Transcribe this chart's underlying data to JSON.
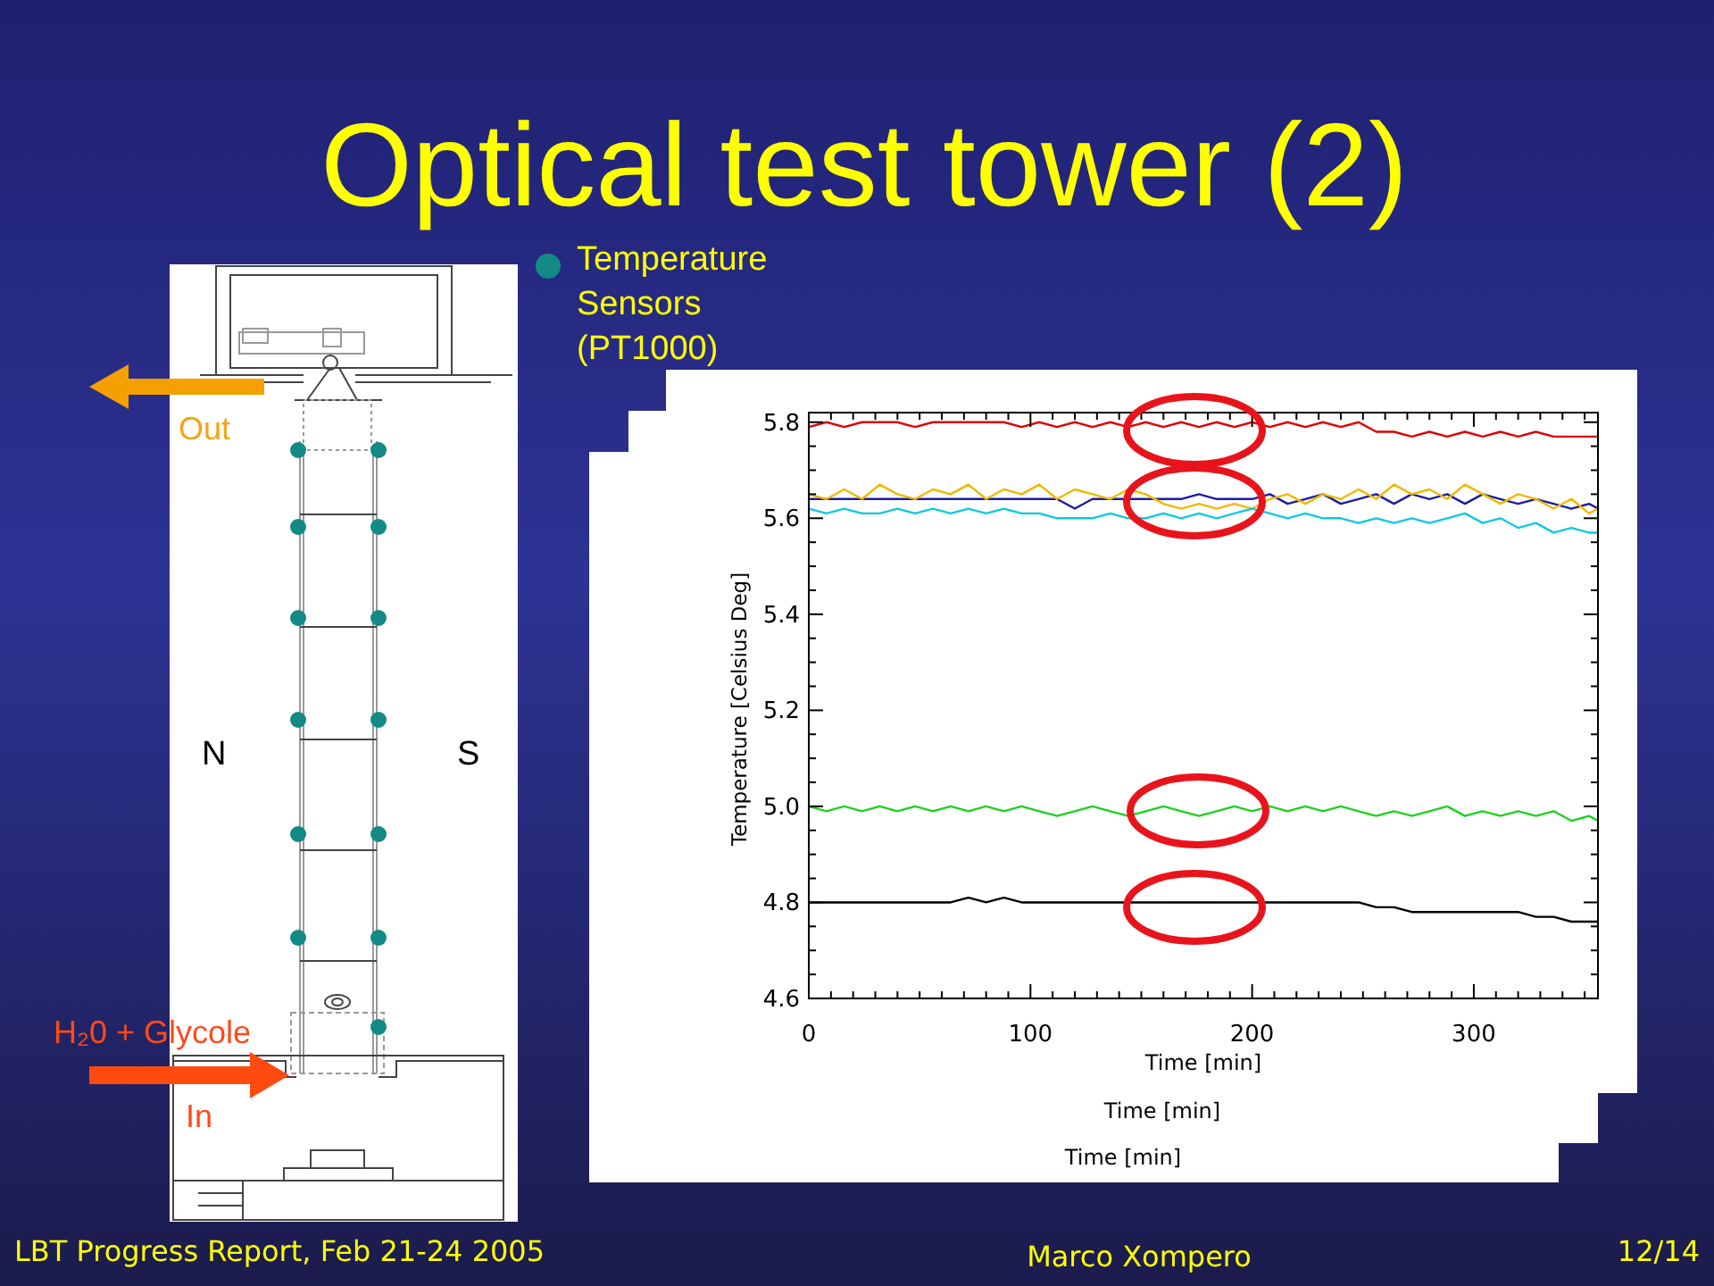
{
  "chart_data": {
    "type": "line",
    "title": "Optical test tower (2)",
    "xlabel": "Time [min]",
    "ylabel": "Temperature [Celsius Deg]",
    "x": [
      0,
      8,
      16,
      24,
      32,
      40,
      48,
      56,
      64,
      72,
      80,
      88,
      96,
      104,
      112,
      120,
      128,
      136,
      144,
      152,
      160,
      168,
      176,
      184,
      192,
      200,
      208,
      216,
      224,
      232,
      240,
      248,
      256,
      264,
      272,
      280,
      288,
      296,
      304,
      312,
      320,
      328,
      336,
      344,
      352,
      356
    ],
    "xlim": [
      0,
      356
    ],
    "ylim": [
      4.6,
      5.82
    ],
    "xticks": [
      0,
      {
        "value": 10,
        "label": null
      },
      {
        "value": 20,
        "label": null
      },
      {
        "value": 30,
        "label": null
      },
      {
        "value": 40,
        "label": null
      },
      {
        "value": 50,
        "label": null
      },
      {
        "value": 60,
        "label": null
      },
      {
        "value": 70,
        "label": null
      },
      {
        "value": 80,
        "label": null
      },
      {
        "value": 90,
        "label": null
      },
      100,
      {
        "value": 110,
        "label": null
      },
      {
        "value": 120,
        "label": null
      },
      {
        "value": 130,
        "label": null
      },
      {
        "value": 140,
        "label": null
      },
      {
        "value": 150,
        "label": null
      },
      {
        "value": 160,
        "label": null
      },
      {
        "value": 170,
        "label": null
      },
      {
        "value": 180,
        "label": null
      },
      {
        "value": 190,
        "label": null
      },
      200,
      {
        "value": 210,
        "label": null
      },
      {
        "value": 220,
        "label": null
      },
      {
        "value": 230,
        "label": null
      },
      {
        "value": 240,
        "label": null
      },
      {
        "value": 250,
        "label": null
      },
      {
        "value": 260,
        "label": null
      },
      {
        "value": 270,
        "label": null
      },
      {
        "value": 280,
        "label": null
      },
      {
        "value": 290,
        "label": null
      },
      300,
      {
        "value": 310,
        "label": null
      },
      {
        "value": 320,
        "label": null
      },
      {
        "value": 330,
        "label": null
      },
      {
        "value": 340,
        "label": null
      },
      {
        "value": 350,
        "label": null
      }
    ],
    "yticks": [
      4.6,
      {
        "value": 4.65,
        "label": null
      },
      {
        "value": 4.7,
        "label": null
      },
      {
        "value": 4.75,
        "label": null
      },
      4.8,
      {
        "value": 4.85,
        "label": null
      },
      {
        "value": 4.9,
        "label": null
      },
      {
        "value": 4.95,
        "label": null
      },
      {
        "value": 5,
        "label": "5.0"
      },
      {
        "value": 5.05,
        "label": null
      },
      {
        "value": 5.1,
        "label": null
      },
      {
        "value": 5.15,
        "label": null
      },
      5.2,
      {
        "value": 5.25,
        "label": null
      },
      {
        "value": 5.3,
        "label": null
      },
      {
        "value": 5.35,
        "label": null
      },
      5.4,
      {
        "value": 5.45,
        "label": null
      },
      {
        "value": 5.5,
        "label": null
      },
      {
        "value": 5.55,
        "label": null
      },
      5.6,
      {
        "value": 5.65,
        "label": null
      },
      {
        "value": 5.7,
        "label": null
      },
      {
        "value": 5.75,
        "label": null
      },
      5.8
    ],
    "line_style": "solid",
    "series": [
      {
        "color": "#e00000",
        "values": [
          5.79,
          5.8,
          5.79,
          5.8,
          5.8,
          5.8,
          5.79,
          5.8,
          5.8,
          5.8,
          5.8,
          5.8,
          5.79,
          5.8,
          5.79,
          5.8,
          5.79,
          5.8,
          5.79,
          5.8,
          5.79,
          5.8,
          5.79,
          5.8,
          5.79,
          5.8,
          5.79,
          5.8,
          5.79,
          5.8,
          5.79,
          5.8,
          5.78,
          5.78,
          5.77,
          5.78,
          5.77,
          5.78,
          5.77,
          5.78,
          5.77,
          5.78,
          5.77,
          5.77,
          5.77,
          5.77
        ]
      },
      {
        "color": "#1c1ca0",
        "values": [
          5.64,
          5.64,
          5.64,
          5.64,
          5.64,
          5.64,
          5.64,
          5.64,
          5.64,
          5.64,
          5.64,
          5.64,
          5.64,
          5.64,
          5.64,
          5.62,
          5.64,
          5.64,
          5.64,
          5.64,
          5.64,
          5.64,
          5.65,
          5.64,
          5.64,
          5.64,
          5.65,
          5.63,
          5.64,
          5.65,
          5.63,
          5.64,
          5.65,
          5.63,
          5.65,
          5.64,
          5.65,
          5.63,
          5.65,
          5.64,
          5.63,
          5.64,
          5.63,
          5.62,
          5.63,
          5.62
        ]
      },
      {
        "color": "#f0b800",
        "values": [
          5.65,
          5.64,
          5.66,
          5.64,
          5.67,
          5.65,
          5.64,
          5.66,
          5.65,
          5.67,
          5.64,
          5.66,
          5.65,
          5.67,
          5.64,
          5.66,
          5.65,
          5.64,
          5.66,
          5.65,
          5.63,
          5.62,
          5.63,
          5.62,
          5.63,
          5.62,
          5.64,
          5.65,
          5.63,
          5.65,
          5.64,
          5.66,
          5.64,
          5.67,
          5.65,
          5.66,
          5.64,
          5.67,
          5.65,
          5.63,
          5.65,
          5.64,
          5.62,
          5.64,
          5.61,
          5.62
        ]
      },
      {
        "color": "#10c8e0",
        "values": [
          5.62,
          5.61,
          5.62,
          5.61,
          5.61,
          5.62,
          5.61,
          5.62,
          5.61,
          5.62,
          5.61,
          5.62,
          5.61,
          5.61,
          5.6,
          5.6,
          5.6,
          5.61,
          5.6,
          5.6,
          5.61,
          5.6,
          5.61,
          5.6,
          5.61,
          5.62,
          5.61,
          5.6,
          5.61,
          5.6,
          5.6,
          5.59,
          5.6,
          5.59,
          5.6,
          5.59,
          5.6,
          5.61,
          5.59,
          5.6,
          5.58,
          5.59,
          5.57,
          5.58,
          5.57,
          5.57
        ]
      },
      {
        "color": "#20d020",
        "values": [
          5.0,
          4.99,
          5.0,
          4.99,
          5.0,
          4.99,
          5.0,
          4.99,
          5.0,
          4.99,
          5.0,
          4.99,
          5.0,
          4.99,
          4.98,
          4.99,
          5.0,
          4.99,
          4.98,
          4.99,
          5.0,
          4.99,
          4.98,
          4.99,
          5.0,
          4.99,
          5.0,
          4.99,
          5.0,
          4.99,
          5.0,
          4.99,
          4.98,
          4.99,
          4.98,
          4.99,
          5.0,
          4.98,
          4.99,
          4.98,
          4.99,
          4.98,
          4.99,
          4.97,
          4.98,
          4.97
        ]
      },
      {
        "color": "#000000",
        "values": [
          4.8,
          4.8,
          4.8,
          4.8,
          4.8,
          4.8,
          4.8,
          4.8,
          4.8,
          4.81,
          4.8,
          4.81,
          4.8,
          4.8,
          4.8,
          4.8,
          4.8,
          4.8,
          4.8,
          4.8,
          4.8,
          4.8,
          4.8,
          4.8,
          4.8,
          4.8,
          4.8,
          4.8,
          4.8,
          4.8,
          4.8,
          4.8,
          4.79,
          4.79,
          4.78,
          4.78,
          4.78,
          4.78,
          4.78,
          4.78,
          4.78,
          4.77,
          4.77,
          4.76,
          4.76,
          4.76
        ]
      }
    ],
    "annotations": [
      "Temperature Sensors (PT1000)",
      "Out",
      "H₂0 + Glycole",
      "In",
      "N",
      "S",
      "Time [min]",
      "Time [min]",
      "LBT Progress Report, Feb 21-24 2005",
      "Marco Xompero",
      "12/14"
    ]
  }
}
